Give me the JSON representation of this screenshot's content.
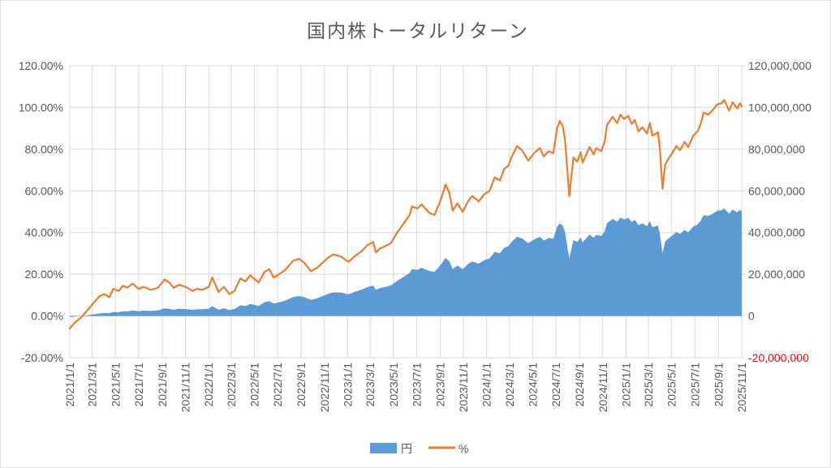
{
  "title": "国内株トータルリターン",
  "colors": {
    "axis_text": "#595959",
    "gridline": "#D9D9D9",
    "axis_line": "#D9D9D9",
    "negative_tick": "#FF0000",
    "yen_series": "#5B9BD5",
    "pct_series": "#ED7D31"
  },
  "chart_data": {
    "type": "combo",
    "title": "国内株トータルリターン",
    "legend_position": "bottom",
    "grid": true,
    "x_ticks": [
      "2021/1/1",
      "2021/3/1",
      "2021/5/1",
      "2021/7/1",
      "2021/9/1",
      "2021/11/1",
      "2022/1/1",
      "2022/3/1",
      "2022/5/1",
      "2022/7/1",
      "2022/9/1",
      "2022/11/1",
      "2023/1/1",
      "2023/3/1",
      "2023/5/1",
      "2023/7/1",
      "2023/9/1",
      "2023/11/1",
      "2024/1/1",
      "2024/3/1",
      "2024/5/1",
      "2024/7/1",
      "2024/9/1",
      "2024/11/1",
      "2025/1/1",
      "2025/3/1",
      "2025/5/1",
      "2025/7/1",
      "2025/9/1",
      "2025/11/1"
    ],
    "left_axis": {
      "unit": "%",
      "min": -20,
      "max": 120,
      "step": 20,
      "tick_labels": [
        "120.00%",
        "100.00%",
        "80.00%",
        "60.00%",
        "40.00%",
        "20.00%",
        "0.00%",
        "-20.00%"
      ]
    },
    "right_axis": {
      "unit": "JPY",
      "min": -20000000,
      "max": 120000000,
      "step": 20000000,
      "tick_labels": [
        "120,000,000",
        "100,000,000",
        "80,000,000",
        "60,000,000",
        "40,000,000",
        "20,000,000",
        "0",
        "-20,000,000"
      ],
      "negative_tick_color": "#FF0000"
    },
    "x": [
      "2021/1/1",
      "2021/1/15",
      "2021/2/1",
      "2021/2/15",
      "2021/3/1",
      "2021/3/20",
      "2021/4/1",
      "2021/4/15",
      "2021/4/25",
      "2021/5/10",
      "2021/5/20",
      "2021/6/1",
      "2021/6/15",
      "2021/7/1",
      "2021/7/15",
      "2021/8/1",
      "2021/8/20",
      "2021/9/7",
      "2021/9/20",
      "2021/10/1",
      "2021/10/15",
      "2021/11/1",
      "2021/11/20",
      "2021/12/1",
      "2021/12/15",
      "2022/1/1",
      "2022/1/10",
      "2022/1/27",
      "2022/2/10",
      "2022/2/24",
      "2022/3/10",
      "2022/3/25",
      "2022/4/8",
      "2022/4/20",
      "2022/5/12",
      "2022/5/27",
      "2022/6/9",
      "2022/6/20",
      "2022/7/1",
      "2022/7/20",
      "2022/8/11",
      "2022/8/26",
      "2022/9/9",
      "2022/9/26",
      "2022/10/12",
      "2022/10/27",
      "2022/11/11",
      "2022/11/24",
      "2022/12/15",
      "2022/12/29",
      "2023/1/4",
      "2023/1/18",
      "2023/2/6",
      "2023/2/22",
      "2023/3/9",
      "2023/3/16",
      "2023/3/28",
      "2023/4/10",
      "2023/4/25",
      "2023/5/11",
      "2023/5/25",
      "2023/6/13",
      "2023/6/19",
      "2023/7/3",
      "2023/7/14",
      "2023/8/3",
      "2023/8/17",
      "2023/9/1",
      "2023/9/15",
      "2023/9/25",
      "2023/10/4",
      "2023/10/16",
      "2023/10/30",
      "2023/11/15",
      "2023/11/24",
      "2023/12/11",
      "2023/12/27",
      "2024/1/9",
      "2024/1/22",
      "2024/2/5",
      "2024/2/16",
      "2024/2/27",
      "2024/3/7",
      "2024/3/21",
      "2024/4/3",
      "2024/4/19",
      "2024/5/7",
      "2024/5/20",
      "2024/5/30",
      "2024/6/12",
      "2024/6/24",
      "2024/7/4",
      "2024/7/11",
      "2024/7/19",
      "2024/7/25",
      "2024/8/5",
      "2024/8/16",
      "2024/8/26",
      "2024/9/4",
      "2024/9/9",
      "2024/9/27",
      "2024/10/8",
      "2024/10/15",
      "2024/10/28",
      "2024/11/6",
      "2024/11/12",
      "2024/11/27",
      "2024/12/9",
      "2024/12/17",
      "2024/12/27",
      "2025/1/7",
      "2025/1/16",
      "2025/1/24",
      "2025/2/3",
      "2025/2/13",
      "2025/2/25",
      "2025/3/5",
      "2025/3/11",
      "2025/3/26",
      "2025/3/31",
      "2025/4/7",
      "2025/4/14",
      "2025/4/23",
      "2025/5/2",
      "2025/5/13",
      "2025/5/23",
      "2025/6/4",
      "2025/6/13",
      "2025/6/27",
      "2025/7/8",
      "2025/7/16",
      "2025/7/24",
      "2025/8/5",
      "2025/8/18",
      "2025/8/29",
      "2025/9/9",
      "2025/9/16",
      "2025/9/29",
      "2025/10/8",
      "2025/10/20",
      "2025/10/27",
      "2025/11/1"
    ],
    "series": [
      {
        "name": "円",
        "type": "area",
        "axis": "right",
        "color": "#5B9BD5",
        "values": [
          -540000,
          -290000,
          -50000,
          280000,
          650000,
          1220000,
          1410000,
          1260000,
          1890000,
          1820000,
          2260000,
          2200000,
          2620000,
          2300000,
          2580000,
          2400000,
          2710000,
          3660000,
          3440000,
          2980000,
          3410000,
          3290000,
          2930000,
          3250000,
          3200000,
          3500000,
          4700000,
          3000000,
          3740000,
          2860000,
          3350000,
          5130000,
          4790000,
          5750000,
          4860000,
          6510000,
          7110000,
          5920000,
          6340000,
          7330000,
          9060000,
          9570000,
          9000000,
          7740000,
          8440000,
          9510000,
          10610000,
          11330000,
          11200000,
          10570000,
          10410000,
          11490000,
          12590000,
          13890000,
          14590000,
          12580000,
          13460000,
          13950000,
          14670000,
          16880000,
          18440000,
          20710000,
          22470000,
          22150000,
          23110000,
          21560000,
          21220000,
          24200000,
          27880000,
          26200000,
          22500000,
          24170000,
          22500000,
          25110000,
          26110000,
          25110000,
          26850000,
          27640000,
          30710000,
          30080000,
          32700000,
          33460000,
          35610000,
          38040000,
          37180000,
          34940000,
          36930000,
          37960000,
          36140000,
          37410000,
          37000000,
          42780000,
          44490000,
          43360000,
          40070000,
          27470000,
          36380000,
          35480000,
          37700000,
          35330000,
          39060000,
          37440000,
          38930000,
          38290000,
          40540000,
          44470000,
          46530000,
          45160000,
          47170000,
          46280000,
          47060000,
          45130000,
          46130000,
          43450000,
          44460000,
          43020000,
          45500000,
          42570000,
          43340000,
          39420000,
          30070000,
          35750000,
          37250000,
          38510000,
          40260000,
          39300000,
          41300000,
          40090000,
          42840000,
          43870000,
          45620000,
          48370000,
          47910000,
          49190000,
          50470000,
          50750000,
          51510000,
          49060000,
          51090000,
          49620000,
          50890000,
          50160000
        ]
      },
      {
        "name": "%",
        "type": "line",
        "axis": "left",
        "color": "#ED7D31",
        "values": [
          -6,
          -3,
          -0.5,
          2.5,
          5.5,
          9.5,
          10.5,
          9,
          13,
          12,
          14.5,
          13.5,
          15.5,
          13,
          14,
          12.5,
          13.5,
          17.5,
          16,
          13.5,
          15,
          14,
          12,
          13,
          12.5,
          14,
          18.5,
          11.5,
          14,
          10.5,
          12,
          18,
          16.5,
          19.5,
          16,
          21,
          22.5,
          18.5,
          19.5,
          22,
          26.5,
          27.5,
          25.5,
          21.5,
          23,
          25.5,
          28,
          29.5,
          28.5,
          26.5,
          26,
          28.5,
          31,
          34,
          35.5,
          30.5,
          32.5,
          33.5,
          35,
          40,
          43.5,
          48.5,
          52.5,
          51.5,
          53.5,
          49.5,
          48.5,
          55,
          63,
          59,
          50.5,
          54,
          50,
          55.5,
          57.5,
          55,
          58.5,
          60,
          66.5,
          65,
          70.5,
          72,
          76.5,
          81.5,
          79.5,
          74.5,
          78.5,
          80.5,
          76.5,
          79,
          78,
          90,
          93.5,
          91,
          84,
          57.5,
          76,
          74,
          78.5,
          73.5,
          81,
          77.5,
          80.5,
          79,
          83.5,
          91.5,
          95.5,
          92.5,
          96.5,
          94.5,
          96,
          92,
          94,
          88.5,
          90.5,
          87.5,
          92.5,
          86.5,
          88,
          80,
          61,
          72.5,
          75.5,
          78,
          81.5,
          79.5,
          83.5,
          81,
          86.5,
          88.5,
          92,
          97.5,
          96.5,
          99,
          101.5,
          102,
          103.5,
          98.5,
          102.5,
          99.5,
          102,
          100.5
        ]
      }
    ]
  }
}
